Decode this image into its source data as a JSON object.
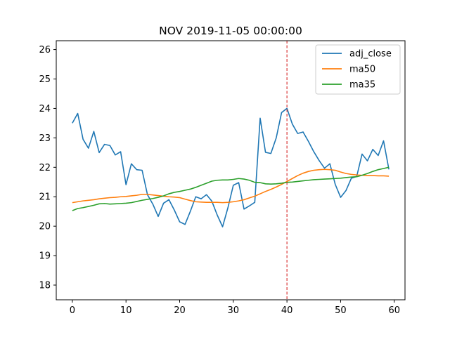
{
  "chart_data": {
    "type": "line",
    "title": "NOV 2019-11-05 00:00:00",
    "xlabel": "",
    "ylabel": "",
    "xlim": [
      -3,
      62
    ],
    "ylim": [
      17.5,
      26.3
    ],
    "xticks": [
      0,
      10,
      20,
      30,
      40,
      50,
      60
    ],
    "yticks": [
      18,
      19,
      20,
      21,
      22,
      23,
      24,
      25,
      26
    ],
    "grid": false,
    "legend_position": "top-right",
    "vline": {
      "x": 40,
      "color": "#d62728",
      "style": "dashed"
    },
    "x": [
      0,
      1,
      2,
      3,
      4,
      5,
      6,
      7,
      8,
      9,
      10,
      11,
      12,
      13,
      14,
      15,
      16,
      17,
      18,
      19,
      20,
      21,
      22,
      23,
      24,
      25,
      26,
      27,
      28,
      29,
      30,
      31,
      32,
      33,
      34,
      35,
      36,
      37,
      38,
      39,
      40,
      41,
      42,
      43,
      44,
      45,
      46,
      47,
      48,
      49,
      50,
      51,
      52,
      53,
      54,
      55,
      56,
      57,
      58,
      59
    ],
    "series": [
      {
        "name": "adj_close",
        "color": "#1f77b4",
        "values": [
          23.5,
          23.83,
          22.95,
          22.65,
          23.22,
          22.5,
          22.78,
          22.74,
          22.42,
          22.53,
          21.41,
          22.12,
          21.92,
          21.9,
          21.07,
          20.75,
          20.33,
          20.78,
          20.9,
          20.55,
          20.15,
          20.06,
          20.51,
          21.0,
          20.93,
          21.07,
          20.85,
          20.38,
          19.98,
          20.63,
          21.39,
          21.48,
          20.58,
          20.69,
          20.81,
          23.67,
          22.51,
          22.47,
          23.0,
          23.86,
          24.0,
          23.47,
          23.15,
          23.2,
          22.88,
          22.53,
          22.23,
          21.97,
          22.12,
          21.42,
          20.98,
          21.21,
          21.63,
          21.69,
          22.45,
          22.22,
          22.61,
          22.4,
          22.9,
          21.93
        ]
      },
      {
        "name": "ma50",
        "color": "#ff7f0e",
        "values": [
          20.8,
          20.83,
          20.86,
          20.88,
          20.9,
          20.93,
          20.95,
          20.97,
          20.98,
          21.0,
          21.01,
          21.03,
          21.05,
          21.08,
          21.08,
          21.06,
          21.04,
          21.02,
          21.0,
          20.99,
          20.97,
          20.92,
          20.87,
          20.83,
          20.82,
          20.81,
          20.81,
          20.81,
          20.8,
          20.81,
          20.83,
          20.86,
          20.9,
          20.96,
          21.02,
          21.1,
          21.18,
          21.25,
          21.33,
          21.42,
          21.52,
          21.62,
          21.72,
          21.8,
          21.86,
          21.9,
          21.92,
          21.93,
          21.92,
          21.9,
          21.84,
          21.79,
          21.76,
          21.74,
          21.73,
          21.72,
          21.72,
          21.71,
          21.71,
          21.7
        ]
      },
      {
        "name": "ma35",
        "color": "#2ca02c",
        "values": [
          20.53,
          20.6,
          20.63,
          20.67,
          20.71,
          20.76,
          20.77,
          20.75,
          20.76,
          20.77,
          20.78,
          20.8,
          20.84,
          20.88,
          20.91,
          20.94,
          20.98,
          21.03,
          21.1,
          21.15,
          21.18,
          21.22,
          21.26,
          21.32,
          21.39,
          21.46,
          21.53,
          21.56,
          21.57,
          21.57,
          21.59,
          21.62,
          21.6,
          21.56,
          21.49,
          21.48,
          21.44,
          21.43,
          21.44,
          21.46,
          21.49,
          21.5,
          21.52,
          21.54,
          21.56,
          21.58,
          21.59,
          21.6,
          21.61,
          21.62,
          21.63,
          21.65,
          21.67,
          21.68,
          21.73,
          21.79,
          21.86,
          21.92,
          21.96,
          22.0
        ]
      }
    ]
  }
}
